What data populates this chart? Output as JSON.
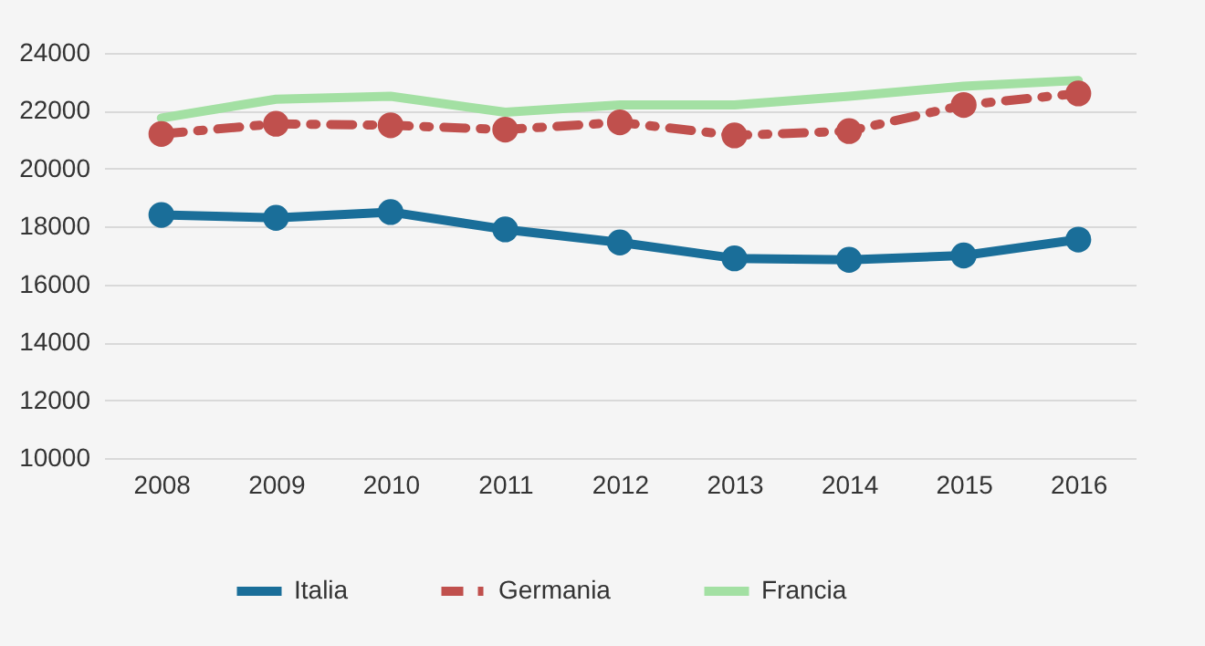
{
  "chart_data": {
    "type": "line",
    "categories": [
      "2008",
      "2009",
      "2010",
      "2011",
      "2012",
      "2013",
      "2014",
      "2015",
      "2016"
    ],
    "series": [
      {
        "name": "Italia",
        "color": "#1a6e99",
        "marker": "circle",
        "line_style": "solid",
        "values": [
          18400,
          18300,
          18500,
          17900,
          17450,
          16900,
          16850,
          17000,
          17550
        ]
      },
      {
        "name": "Germania",
        "color": "#c0504d",
        "marker": "circle",
        "line_style": "dashdot",
        "values": [
          21200,
          21550,
          21500,
          21350,
          21600,
          21150,
          21300,
          22200,
          22600
        ]
      },
      {
        "name": "Francia",
        "color": "#a3e0a3",
        "marker": "none",
        "line_style": "solid",
        "values": [
          21750,
          22400,
          22500,
          21950,
          22200,
          22200,
          22500,
          22850,
          23050
        ]
      }
    ],
    "ylim": [
      10000,
      24000
    ],
    "yticks": [
      10000,
      12000,
      14000,
      16000,
      18000,
      20000,
      22000,
      24000
    ],
    "grid": "y",
    "legend": "bottom"
  }
}
